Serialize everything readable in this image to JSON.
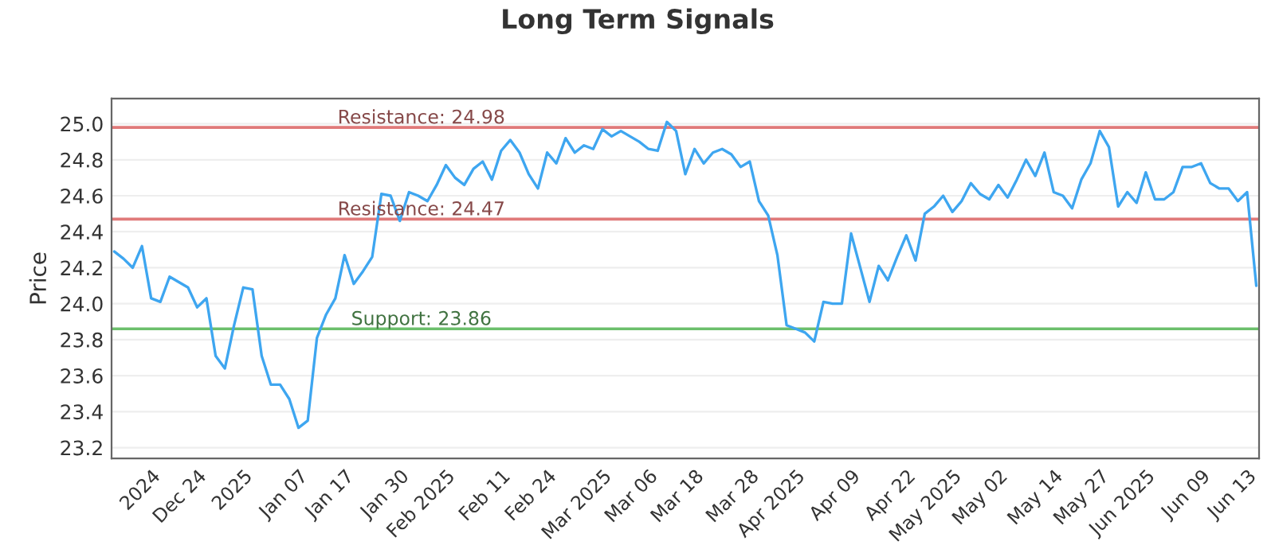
{
  "chart_data": {
    "type": "line",
    "title": "Long Term Signals",
    "ylabel": "Price",
    "categories": [
      null,
      null,
      null,
      null,
      "2024",
      null,
      null,
      null,
      null,
      "Dec 24",
      null,
      null,
      null,
      null,
      "2025",
      null,
      null,
      null,
      null,
      null,
      "Jan 07",
      null,
      null,
      null,
      null,
      "Jan 17",
      null,
      null,
      null,
      null,
      null,
      "Jan 30",
      null,
      null,
      null,
      null,
      "Feb 2025",
      null,
      null,
      null,
      null,
      null,
      "Feb 11",
      null,
      null,
      null,
      null,
      "Feb 24",
      null,
      null,
      null,
      null,
      null,
      "Mar 2025",
      null,
      null,
      null,
      null,
      "Mar 06",
      null,
      null,
      null,
      null,
      "Mar 18",
      null,
      null,
      null,
      null,
      null,
      "Mar 28",
      null,
      null,
      null,
      null,
      "Apr 2025",
      null,
      null,
      null,
      null,
      null,
      "Apr 09",
      null,
      null,
      null,
      null,
      null,
      "Apr 22",
      null,
      null,
      null,
      null,
      "May 2025",
      null,
      null,
      null,
      null,
      "May 02",
      null,
      null,
      null,
      null,
      null,
      "May 14",
      null,
      null,
      null,
      null,
      "May 27",
      null,
      null,
      null,
      null,
      "Jun 2025",
      null,
      null,
      null,
      null,
      null,
      "Jun 09",
      null,
      null,
      null,
      null,
      "Jun 13",
      null
    ],
    "series": [
      {
        "color": "#3ea6f0",
        "values": [
          24.29,
          24.25,
          24.2,
          24.32,
          24.03,
          24.01,
          24.15,
          24.12,
          24.09,
          23.98,
          24.03,
          23.71,
          23.64,
          23.88,
          24.09,
          24.08,
          23.71,
          23.55,
          23.55,
          23.47,
          23.31,
          23.35,
          23.81,
          23.94,
          24.03,
          24.27,
          24.11,
          24.18,
          24.26,
          24.61,
          24.6,
          24.46,
          24.62,
          24.6,
          24.57,
          24.66,
          24.77,
          24.7,
          24.66,
          24.75,
          24.79,
          24.69,
          24.85,
          24.91,
          24.84,
          24.72,
          24.64,
          24.84,
          24.78,
          24.92,
          24.84,
          24.88,
          24.86,
          24.97,
          24.93,
          24.96,
          24.93,
          24.9,
          24.86,
          24.85,
          25.01,
          24.96,
          24.72,
          24.86,
          24.78,
          24.84,
          24.86,
          24.83,
          24.76,
          24.79,
          24.57,
          24.49,
          24.27,
          23.88,
          23.86,
          23.84,
          23.79,
          24.01,
          24.0,
          24.0,
          24.39,
          24.2,
          24.01,
          24.21,
          24.13,
          24.26,
          24.38,
          24.24,
          24.5,
          24.54,
          24.6,
          24.51,
          24.57,
          24.67,
          24.61,
          24.58,
          24.66,
          24.59,
          24.69,
          24.8,
          24.71,
          24.84,
          24.62,
          24.6,
          24.53,
          24.69,
          24.78,
          24.96,
          24.87,
          24.54,
          24.62,
          24.56,
          24.73,
          24.58,
          24.58,
          24.62,
          24.76,
          24.76,
          24.78,
          24.67,
          24.64,
          24.64,
          24.57,
          24.62,
          24.1
        ]
      }
    ],
    "ylim": [
      23.14,
      25.14
    ],
    "yticks": [
      {
        "value": 23.2,
        "label": "23.2"
      },
      {
        "value": 23.4,
        "label": "23.4"
      },
      {
        "value": 23.6,
        "label": "23.6"
      },
      {
        "value": 23.8,
        "label": "23.8"
      },
      {
        "value": 24.0,
        "label": "24.0"
      },
      {
        "value": 24.2,
        "label": "24.2"
      },
      {
        "value": 24.4,
        "label": "24.4"
      },
      {
        "value": 24.6,
        "label": "24.6"
      },
      {
        "value": 24.8,
        "label": "24.8"
      },
      {
        "value": 25.0,
        "label": "25.0"
      }
    ],
    "ref_lines": [
      {
        "axis": "y",
        "value": 24.98,
        "label": "Resistance: 24.98",
        "color": "#e07a7a"
      },
      {
        "axis": "y",
        "value": 24.47,
        "label": "Resistance: 24.47",
        "color": "#e07a7a"
      },
      {
        "axis": "y",
        "value": 23.86,
        "label": "Support: 23.86",
        "color": "#6cbf6c"
      }
    ],
    "grid": "y",
    "legend": false
  }
}
